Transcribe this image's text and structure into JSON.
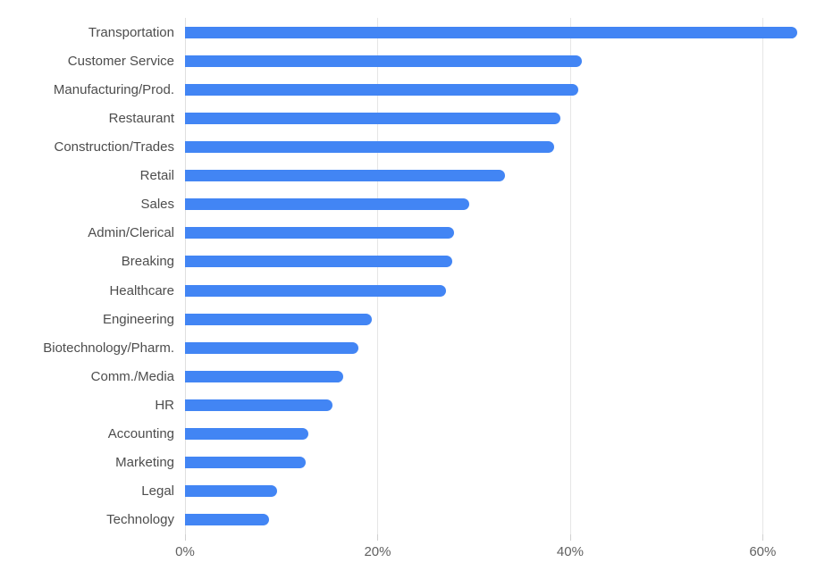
{
  "chart_data": {
    "type": "bar",
    "orientation": "horizontal",
    "title": "",
    "xlabel": "",
    "ylabel": "",
    "unit": "%",
    "categories": [
      "Transportation",
      "Customer Service",
      "Manufacturing/Prod.",
      "Restaurant",
      "Construction/Trades",
      "Retail",
      "Sales",
      "Admin/Clerical",
      "Breaking",
      "Healthcare",
      "Engineering",
      "Biotechnology/Pharm.",
      "Comm./Media",
      "HR",
      "Accounting",
      "Marketing",
      "Legal",
      "Technology"
    ],
    "values": [
      63.6,
      41.2,
      40.8,
      39.0,
      38.3,
      33.2,
      29.5,
      27.9,
      27.8,
      27.1,
      19.4,
      18.0,
      16.4,
      15.3,
      12.8,
      12.5,
      9.6,
      8.7
    ],
    "xlim": [
      0,
      67.3
    ],
    "x_ticks": [
      {
        "value": 0,
        "label": "0%"
      },
      {
        "value": 20,
        "label": "20%"
      },
      {
        "value": 40,
        "label": "40%"
      },
      {
        "value": 60,
        "label": "60%"
      }
    ],
    "grid": "vertical-only",
    "legend": "none",
    "colors": {
      "bar": "#4285F4",
      "category_label": "#4D4D4D",
      "tick_label": "#616161",
      "gridline": "#E6E6E6",
      "zero_line": "#E0E0E0",
      "tick_mark": "#D0D0D0",
      "background": "#FFFFFF"
    }
  }
}
